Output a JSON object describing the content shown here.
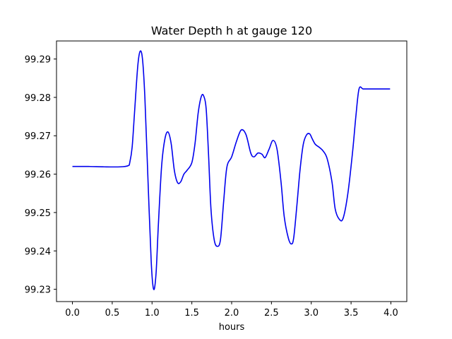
{
  "colors": {
    "series": "#0000ee",
    "axes": "#000000",
    "background": "#ffffff"
  },
  "chart_data": {
    "type": "line",
    "title": "Water Depth h at gauge 120",
    "xlabel": "hours",
    "ylabel": "",
    "xlim": [
      -0.2,
      4.2
    ],
    "ylim": [
      99.2268,
      99.2947
    ],
    "xticks": [
      0.0,
      0.5,
      1.0,
      1.5,
      2.0,
      2.5,
      3.0,
      3.5,
      4.0
    ],
    "xtick_labels": [
      "0.0",
      "0.5",
      "1.0",
      "1.5",
      "2.0",
      "2.5",
      "3.0",
      "3.5",
      "4.0"
    ],
    "yticks": [
      99.23,
      99.24,
      99.25,
      99.26,
      99.27,
      99.28,
      99.29
    ],
    "ytick_labels": [
      "99.23",
      "99.24",
      "99.25",
      "99.26",
      "99.27",
      "99.28",
      "99.29"
    ],
    "grid": false,
    "series": [
      {
        "name": "h",
        "x": [
          0.0,
          0.2,
          0.4,
          0.6,
          0.7,
          0.72,
          0.75,
          0.78,
          0.82,
          0.85,
          0.88,
          0.91,
          0.95,
          0.99,
          1.02,
          1.05,
          1.08,
          1.12,
          1.16,
          1.2,
          1.24,
          1.28,
          1.32,
          1.36,
          1.4,
          1.44,
          1.5,
          1.54,
          1.58,
          1.62,
          1.65,
          1.68,
          1.71,
          1.74,
          1.78,
          1.82,
          1.86,
          1.9,
          1.94,
          2.0,
          2.06,
          2.12,
          2.18,
          2.24,
          2.28,
          2.33,
          2.38,
          2.42,
          2.47,
          2.52,
          2.57,
          2.62,
          2.66,
          2.71,
          2.75,
          2.78,
          2.82,
          2.86,
          2.9,
          2.94,
          2.98,
          3.01,
          3.05,
          3.1,
          3.15,
          3.2,
          3.26,
          3.3,
          3.35,
          3.4,
          3.46,
          3.52,
          3.56,
          3.6,
          3.65,
          3.7,
          3.75,
          3.8,
          3.83,
          3.86,
          3.9,
          3.95,
          3.99
        ],
        "y": [
          99.262,
          99.262,
          99.2619,
          99.2619,
          99.2622,
          99.263,
          99.267,
          99.276,
          99.288,
          99.292,
          99.29,
          99.28,
          99.258,
          99.237,
          99.23,
          99.234,
          99.247,
          99.262,
          99.269,
          99.271,
          99.268,
          99.261,
          99.2578,
          99.258,
          99.26,
          99.261,
          99.263,
          99.268,
          99.276,
          99.2803,
          99.2803,
          99.277,
          99.265,
          99.251,
          99.243,
          99.2412,
          99.243,
          99.253,
          99.2618,
          99.2645,
          99.2685,
          99.2715,
          99.2703,
          99.2655,
          99.2645,
          99.2655,
          99.2652,
          99.2643,
          99.2665,
          99.2688,
          99.2665,
          99.258,
          99.249,
          99.2435,
          99.2418,
          99.2435,
          99.252,
          99.2613,
          99.2678,
          99.2702,
          99.2705,
          99.2693,
          99.2678,
          99.267,
          99.266,
          99.264,
          99.258,
          99.251,
          99.2483,
          99.2485,
          99.255,
          99.266,
          99.275,
          99.2822,
          99.2822,
          99.2822,
          99.2822,
          99.2822,
          99.2822,
          99.2822,
          99.2822,
          99.2822,
          99.2822
        ]
      }
    ]
  }
}
